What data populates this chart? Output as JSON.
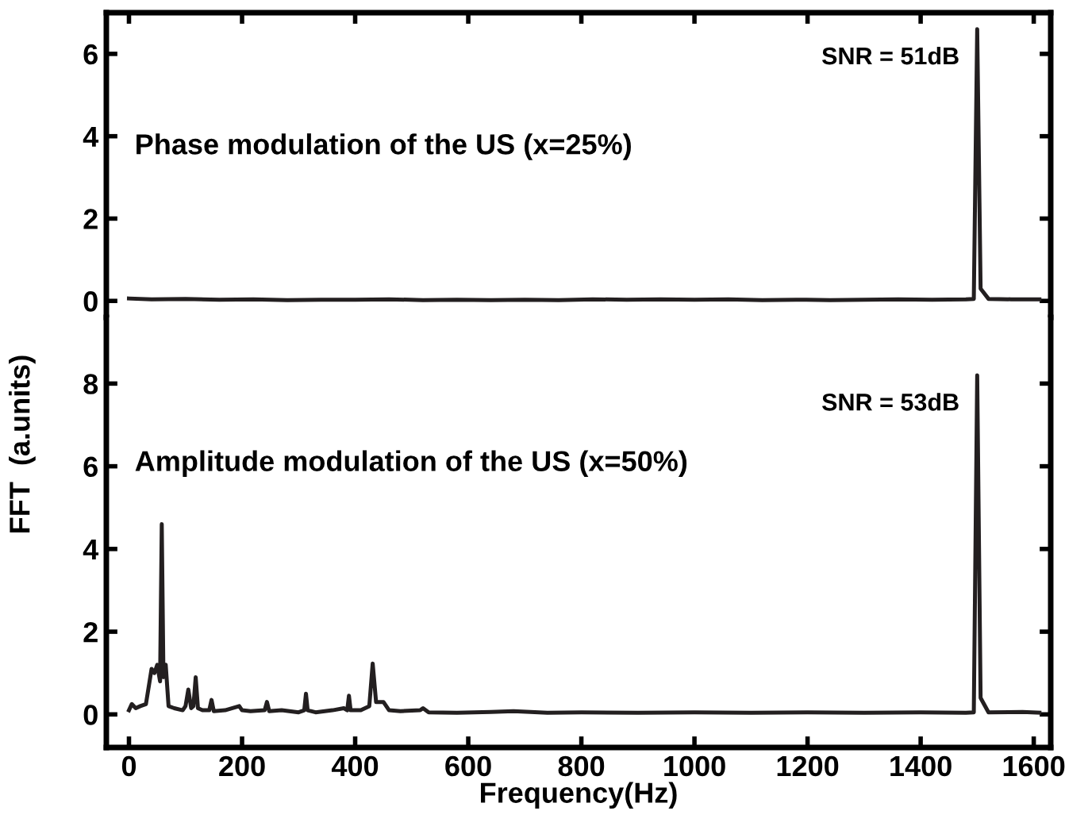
{
  "chart_data": [
    {
      "type": "line",
      "xlim": [
        -40,
        1630
      ],
      "xticks": [
        0,
        200,
        400,
        600,
        800,
        1000,
        1200,
        1400,
        1600
      ],
      "ylim": [
        -0.4,
        7
      ],
      "yticks": [
        0,
        2,
        4,
        6
      ],
      "tick_labels": "y",
      "grid": false,
      "legend": false,
      "marker": "none",
      "line_style": "solid",
      "annotations": [
        "Phase modulation of the US (x=25%)",
        {
          "text": "SNR = 51dB",
          "x": 1500,
          "y": 6.6
        }
      ],
      "series": [
        {
          "color": "#231f20",
          "x": [
            0,
            40,
            100,
            160,
            220,
            280,
            340,
            400,
            460,
            520,
            580,
            640,
            700,
            760,
            820,
            880,
            940,
            1000,
            1060,
            1120,
            1180,
            1240,
            1300,
            1360,
            1420,
            1480,
            1494,
            1500,
            1506,
            1520,
            1560,
            1610
          ],
          "values": [
            0.06,
            0.04,
            0.05,
            0.03,
            0.04,
            0.02,
            0.03,
            0.03,
            0.04,
            0.02,
            0.03,
            0.02,
            0.03,
            0.02,
            0.04,
            0.03,
            0.04,
            0.03,
            0.04,
            0.02,
            0.03,
            0.02,
            0.03,
            0.04,
            0.03,
            0.04,
            0.05,
            6.6,
            0.3,
            0.05,
            0.04,
            0.04
          ]
        }
      ]
    },
    {
      "type": "line",
      "xlim": [
        -40,
        1630
      ],
      "xticks": [
        0,
        200,
        400,
        600,
        800,
        1000,
        1200,
        1400,
        1600
      ],
      "ylim": [
        -0.8,
        9.6
      ],
      "yticks": [
        0,
        2,
        4,
        6,
        8
      ],
      "xlabel": "Frequency(Hz)",
      "ylabel": "FFT  (a.units)",
      "grid": false,
      "legend": false,
      "marker": "none",
      "line_style": "solid",
      "annotations": [
        "Amplitude modulation of the US (x=50%)",
        {
          "text": "SNR = 53dB",
          "x": 1500,
          "y": 8.2
        }
      ],
      "series": [
        {
          "color": "#231f20",
          "x": [
            0,
            5,
            12,
            20,
            30,
            40,
            45,
            50,
            55,
            58,
            61,
            65,
            70,
            80,
            95,
            100,
            105,
            110,
            114,
            118,
            122,
            130,
            142,
            146,
            150,
            170,
            195,
            200,
            215,
            240,
            244,
            248,
            270,
            300,
            310,
            313,
            316,
            330,
            360,
            380,
            386,
            389,
            392,
            410,
            425,
            431,
            437,
            450,
            460,
            480,
            515,
            520,
            530,
            580,
            640,
            680,
            740,
            800,
            900,
            1000,
            1100,
            1200,
            1300,
            1400,
            1480,
            1494,
            1500,
            1506,
            1520,
            1580,
            1610
          ],
          "values": [
            0.1,
            0.25,
            0.15,
            0.2,
            0.25,
            1.1,
            1.0,
            1.2,
            0.8,
            4.6,
            0.9,
            1.2,
            0.2,
            0.15,
            0.1,
            0.2,
            0.6,
            0.15,
            0.2,
            0.9,
            0.15,
            0.1,
            0.1,
            0.35,
            0.08,
            0.1,
            0.2,
            0.1,
            0.08,
            0.1,
            0.3,
            0.08,
            0.1,
            0.05,
            0.1,
            0.5,
            0.1,
            0.05,
            0.1,
            0.15,
            0.1,
            0.45,
            0.1,
            0.1,
            0.2,
            1.23,
            0.3,
            0.3,
            0.1,
            0.08,
            0.1,
            0.15,
            0.05,
            0.04,
            0.06,
            0.08,
            0.04,
            0.05,
            0.04,
            0.05,
            0.04,
            0.05,
            0.04,
            0.05,
            0.04,
            0.05,
            8.2,
            0.4,
            0.05,
            0.06,
            0.04
          ]
        }
      ]
    }
  ]
}
